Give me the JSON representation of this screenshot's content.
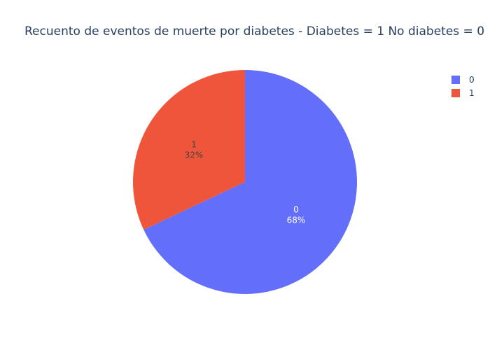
{
  "chart_data": {
    "type": "pie",
    "title": "Recuento de eventos de muerte por diabetes - Diabetes = 1 No diabetes = 0",
    "slices": [
      {
        "label": "0",
        "percent": 68,
        "color": "#636efa",
        "text_color": "#ffffff"
      },
      {
        "label": "1",
        "percent": 32,
        "color": "#ef553b",
        "text_color": "#444444"
      }
    ],
    "legend": {
      "placement": "top-right",
      "entries": [
        {
          "label": "0",
          "color": "#636efa"
        },
        {
          "label": "1",
          "color": "#ef553b"
        }
      ]
    }
  }
}
